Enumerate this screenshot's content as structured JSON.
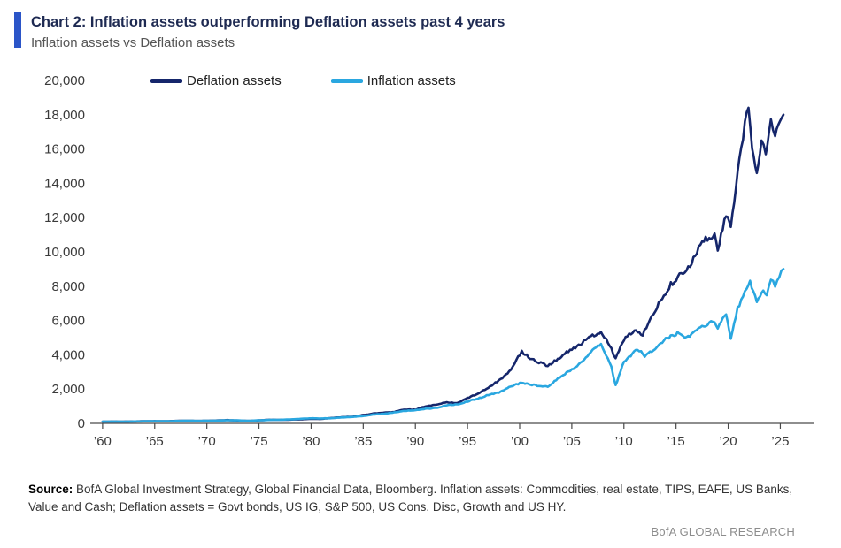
{
  "header": {
    "title": "Chart 2: Inflation assets outperforming Deflation assets past 4 years",
    "subtitle": "Inflation assets vs Deflation assets"
  },
  "colors": {
    "accent_bar": "#2b55c8",
    "deflation_line": "#15266b",
    "inflation_line": "#2aa7e0"
  },
  "footer": {
    "source_label": "Source:",
    "source_text": " BofA Global Investment Strategy, Global Financial Data, Bloomberg. Inflation assets: Commodities, real estate, TIPS, EAFE, US Banks, Value and Cash; Deflation assets = Govt bonds, US IG, S&P 500, US Cons. Disc, Growth and US HY.",
    "research": "BofA GLOBAL RESEARCH"
  },
  "chart_data": {
    "type": "line",
    "title": "Inflation assets vs Deflation assets",
    "legend_position": "top-left-inside",
    "grid": false,
    "xlim": [
      1959.5,
      2027
    ],
    "ylim": [
      0,
      20000
    ],
    "x_ticks": {
      "values": [
        1960,
        1965,
        1970,
        1975,
        1980,
        1985,
        1990,
        1995,
        2000,
        2005,
        2010,
        2015,
        2020,
        2025
      ],
      "labels": [
        "’60",
        "’65",
        "’70",
        "’75",
        "’80",
        "’85",
        "’90",
        "’95",
        "’00",
        "’05",
        "’10",
        "’15",
        "’20",
        "’25"
      ]
    },
    "y_ticks": {
      "values": [
        0,
        2000,
        4000,
        6000,
        8000,
        10000,
        12000,
        14000,
        16000,
        18000,
        20000
      ],
      "labels": [
        "0",
        "2,000",
        "4,000",
        "6,000",
        "8,000",
        "10,000",
        "12,000",
        "14,000",
        "16,000",
        "18,000",
        "20,000"
      ]
    },
    "series": [
      {
        "name": "Deflation assets",
        "color": "#15266b",
        "points": [
          [
            1960,
            100
          ],
          [
            1961,
            108
          ],
          [
            1962,
            103
          ],
          [
            1963,
            115
          ],
          [
            1964,
            124
          ],
          [
            1965,
            132
          ],
          [
            1966,
            125
          ],
          [
            1967,
            142
          ],
          [
            1968,
            156
          ],
          [
            1969,
            142
          ],
          [
            1970,
            152
          ],
          [
            1971,
            168
          ],
          [
            1972,
            192
          ],
          [
            1973,
            165
          ],
          [
            1974,
            140
          ],
          [
            1975,
            178
          ],
          [
            1976,
            212
          ],
          [
            1977,
            205
          ],
          [
            1978,
            218
          ],
          [
            1979,
            235
          ],
          [
            1980,
            265
          ],
          [
            1981,
            258
          ],
          [
            1982,
            315
          ],
          [
            1983,
            365
          ],
          [
            1984,
            390
          ],
          [
            1985,
            485
          ],
          [
            1986,
            575
          ],
          [
            1987,
            620
          ],
          [
            1988,
            672
          ],
          [
            1989,
            815
          ],
          [
            1990,
            800
          ],
          [
            1991,
            1005
          ],
          [
            1992,
            1090
          ],
          [
            1993,
            1225
          ],
          [
            1994,
            1185
          ],
          [
            1995,
            1480
          ],
          [
            1996,
            1725
          ],
          [
            1997,
            2090
          ],
          [
            1998,
            2480
          ],
          [
            1999,
            3000
          ],
          [
            2000.2,
            4200
          ],
          [
            2001,
            3800
          ],
          [
            2002.7,
            3350
          ],
          [
            2003.5,
            3700
          ],
          [
            2004.5,
            4150
          ],
          [
            2005.5,
            4450
          ],
          [
            2006.5,
            4950
          ],
          [
            2007.8,
            5350
          ],
          [
            2008.8,
            4350
          ],
          [
            2009.2,
            3750
          ],
          [
            2010,
            4900
          ],
          [
            2011,
            5400
          ],
          [
            2011.8,
            5200
          ],
          [
            2012.5,
            6000
          ],
          [
            2013.5,
            7200
          ],
          [
            2014.5,
            8100
          ],
          [
            2015.5,
            8700
          ],
          [
            2016,
            9000
          ],
          [
            2016.5,
            9400
          ],
          [
            2017.5,
            10700
          ],
          [
            2018.7,
            11000
          ],
          [
            2019,
            10200
          ],
          [
            2019.8,
            12200
          ],
          [
            2020.25,
            11400
          ],
          [
            2020.9,
            14600
          ],
          [
            2021.6,
            17500
          ],
          [
            2021.95,
            18300
          ],
          [
            2022.3,
            16200
          ],
          [
            2022.75,
            14700
          ],
          [
            2023.2,
            16300
          ],
          [
            2023.6,
            15800
          ],
          [
            2024.1,
            17800
          ],
          [
            2024.5,
            16600
          ],
          [
            2024.8,
            17500
          ],
          [
            2025.3,
            18000
          ]
        ]
      },
      {
        "name": "Inflation assets",
        "color": "#2aa7e0",
        "points": [
          [
            1960,
            100
          ],
          [
            1961,
            107
          ],
          [
            1962,
            104
          ],
          [
            1963,
            112
          ],
          [
            1964,
            120
          ],
          [
            1965,
            127
          ],
          [
            1966,
            123
          ],
          [
            1967,
            138
          ],
          [
            1968,
            152
          ],
          [
            1969,
            145
          ],
          [
            1970,
            150
          ],
          [
            1971,
            162
          ],
          [
            1972,
            182
          ],
          [
            1973,
            172
          ],
          [
            1974,
            152
          ],
          [
            1975,
            178
          ],
          [
            1976,
            202
          ],
          [
            1977,
            210
          ],
          [
            1978,
            232
          ],
          [
            1979,
            268
          ],
          [
            1980,
            295
          ],
          [
            1981,
            290
          ],
          [
            1982,
            302
          ],
          [
            1983,
            345
          ],
          [
            1984,
            372
          ],
          [
            1985,
            430
          ],
          [
            1986,
            520
          ],
          [
            1987,
            560
          ],
          [
            1988,
            640
          ],
          [
            1989,
            730
          ],
          [
            1990,
            770
          ],
          [
            1991,
            855
          ],
          [
            1992,
            900
          ],
          [
            1993,
            1060
          ],
          [
            1994,
            1105
          ],
          [
            1995,
            1280
          ],
          [
            1996,
            1450
          ],
          [
            1997,
            1655
          ],
          [
            1998,
            1800
          ],
          [
            1999,
            2120
          ],
          [
            2000.2,
            2360
          ],
          [
            2001,
            2260
          ],
          [
            2002.7,
            2120
          ],
          [
            2003.5,
            2520
          ],
          [
            2004.5,
            2950
          ],
          [
            2005.5,
            3350
          ],
          [
            2006.5,
            3950
          ],
          [
            2007.8,
            4650
          ],
          [
            2008.8,
            3300
          ],
          [
            2009.2,
            2200
          ],
          [
            2010,
            3600
          ],
          [
            2011.3,
            4350
          ],
          [
            2012,
            3950
          ],
          [
            2013,
            4350
          ],
          [
            2014,
            4900
          ],
          [
            2015.3,
            5300
          ],
          [
            2016,
            5000
          ],
          [
            2016.8,
            5350
          ],
          [
            2017.5,
            5650
          ],
          [
            2018.7,
            6000
          ],
          [
            2019,
            5500
          ],
          [
            2019.8,
            6400
          ],
          [
            2020.25,
            4950
          ],
          [
            2020.9,
            6700
          ],
          [
            2021.6,
            7700
          ],
          [
            2022.1,
            8250
          ],
          [
            2022.75,
            7050
          ],
          [
            2023.2,
            7700
          ],
          [
            2023.7,
            7450
          ],
          [
            2024.1,
            8500
          ],
          [
            2024.5,
            8000
          ],
          [
            2024.9,
            8600
          ],
          [
            2025.3,
            9000
          ]
        ]
      }
    ]
  }
}
